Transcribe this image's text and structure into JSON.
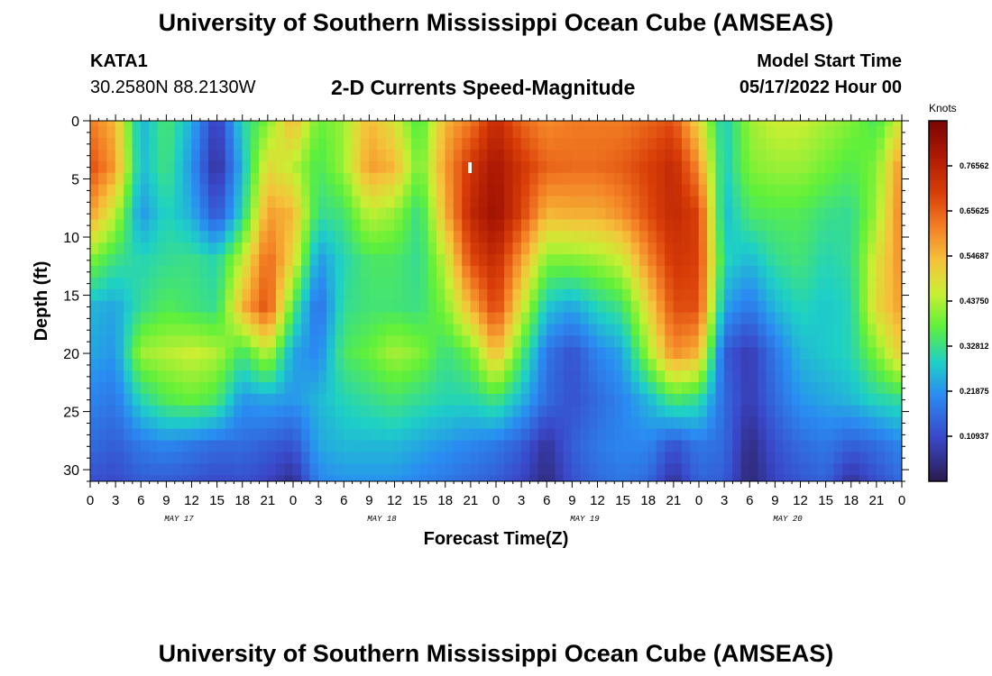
{
  "header": {
    "title": "University of Southern Mississippi Ocean Cube (AMSEAS)",
    "station": "KATA1",
    "coordinates": "30.2580N  88.2130W",
    "subtitle": "2-D Currents Speed-Magnitude",
    "model_start_label": "Model Start Time",
    "model_start_value": "05/17/2022 Hour 00"
  },
  "footer": {
    "title": "University of Southern Mississippi Ocean Cube (AMSEAS)"
  },
  "chart_data": {
    "type": "heatmap",
    "title": "2-D Currents Speed-Magnitude",
    "xlabel": "Forecast Time(Z)",
    "ylabel": "Depth (ft)",
    "x_range_hours": [
      0,
      96
    ],
    "y_range_ft": [
      0,
      31
    ],
    "x_ticks": [
      "0",
      "3",
      "6",
      "9",
      "12",
      "15",
      "18",
      "21",
      "0",
      "3",
      "6",
      "9",
      "12",
      "15",
      "18",
      "21",
      "0",
      "3",
      "6",
      "9",
      "12",
      "15",
      "18",
      "21",
      "0",
      "3",
      "6",
      "9",
      "12",
      "15",
      "18",
      "21",
      "0"
    ],
    "y_ticks": [
      "0",
      "5",
      "10",
      "15",
      "20",
      "25",
      "30"
    ],
    "day_labels": [
      "MAY 17",
      "MAY 18",
      "MAY 19",
      "MAY 20"
    ],
    "colorbar": {
      "title": "Knots",
      "range": [
        0,
        0.875
      ],
      "tick_labels": [
        "0.76562",
        "0.65625",
        "0.54687",
        "0.43750",
        "0.32812",
        "0.21875",
        "0.10937"
      ],
      "tick_values": [
        0.76562,
        0.65625,
        0.54687,
        0.4375,
        0.32812,
        0.21875,
        0.10937
      ]
    },
    "hours": [
      0,
      3,
      6,
      9,
      12,
      15,
      18,
      21,
      24,
      27,
      30,
      33,
      36,
      39,
      42,
      45,
      48,
      51,
      54,
      57,
      60,
      63,
      66,
      69,
      72,
      75,
      78,
      81,
      84,
      87,
      90,
      93,
      96
    ],
    "depths_ft": [
      0,
      4,
      8,
      12,
      16,
      20,
      24,
      28,
      31
    ],
    "values": [
      [
        0.62,
        0.55,
        0.25,
        0.35,
        0.25,
        0.08,
        0.3,
        0.4,
        0.55,
        0.38,
        0.42,
        0.55,
        0.48,
        0.35,
        0.55,
        0.62,
        0.75,
        0.65,
        0.6,
        0.62,
        0.62,
        0.62,
        0.65,
        0.68,
        0.5,
        0.28,
        0.42,
        0.46,
        0.46,
        0.43,
        0.4,
        0.35,
        0.48
      ],
      [
        0.68,
        0.58,
        0.26,
        0.34,
        0.22,
        0.05,
        0.26,
        0.5,
        0.45,
        0.35,
        0.42,
        0.58,
        0.55,
        0.38,
        0.58,
        0.72,
        0.8,
        0.72,
        0.65,
        0.64,
        0.64,
        0.66,
        0.7,
        0.75,
        0.6,
        0.28,
        0.4,
        0.42,
        0.42,
        0.39,
        0.36,
        0.4,
        0.6
      ],
      [
        0.58,
        0.45,
        0.22,
        0.3,
        0.25,
        0.12,
        0.3,
        0.58,
        0.55,
        0.32,
        0.34,
        0.45,
        0.42,
        0.32,
        0.55,
        0.75,
        0.82,
        0.7,
        0.55,
        0.56,
        0.56,
        0.6,
        0.68,
        0.75,
        0.7,
        0.26,
        0.35,
        0.36,
        0.36,
        0.33,
        0.32,
        0.42,
        0.62
      ],
      [
        0.4,
        0.33,
        0.3,
        0.32,
        0.33,
        0.3,
        0.45,
        0.65,
        0.5,
        0.22,
        0.3,
        0.35,
        0.35,
        0.32,
        0.45,
        0.68,
        0.75,
        0.58,
        0.4,
        0.4,
        0.42,
        0.46,
        0.6,
        0.72,
        0.7,
        0.3,
        0.26,
        0.32,
        0.34,
        0.3,
        0.32,
        0.48,
        0.6
      ],
      [
        0.26,
        0.24,
        0.32,
        0.36,
        0.34,
        0.32,
        0.55,
        0.68,
        0.36,
        0.16,
        0.32,
        0.34,
        0.34,
        0.33,
        0.4,
        0.55,
        0.7,
        0.48,
        0.28,
        0.24,
        0.3,
        0.34,
        0.5,
        0.68,
        0.68,
        0.24,
        0.18,
        0.26,
        0.3,
        0.28,
        0.3,
        0.5,
        0.58
      ],
      [
        0.24,
        0.22,
        0.42,
        0.44,
        0.46,
        0.44,
        0.34,
        0.45,
        0.24,
        0.2,
        0.35,
        0.38,
        0.43,
        0.4,
        0.33,
        0.38,
        0.55,
        0.36,
        0.18,
        0.12,
        0.2,
        0.24,
        0.42,
        0.6,
        0.55,
        0.14,
        0.08,
        0.18,
        0.26,
        0.28,
        0.3,
        0.4,
        0.52
      ],
      [
        0.2,
        0.18,
        0.3,
        0.36,
        0.38,
        0.35,
        0.22,
        0.24,
        0.22,
        0.26,
        0.3,
        0.32,
        0.34,
        0.32,
        0.3,
        0.3,
        0.34,
        0.26,
        0.16,
        0.12,
        0.16,
        0.2,
        0.26,
        0.35,
        0.32,
        0.16,
        0.08,
        0.16,
        0.22,
        0.24,
        0.26,
        0.3,
        0.32
      ],
      [
        0.16,
        0.14,
        0.18,
        0.2,
        0.18,
        0.16,
        0.16,
        0.14,
        0.12,
        0.24,
        0.26,
        0.26,
        0.26,
        0.24,
        0.22,
        0.2,
        0.18,
        0.14,
        0.06,
        0.14,
        0.18,
        0.2,
        0.2,
        0.12,
        0.18,
        0.16,
        0.04,
        0.12,
        0.16,
        0.18,
        0.14,
        0.16,
        0.2
      ],
      [
        0.12,
        0.11,
        0.14,
        0.14,
        0.13,
        0.11,
        0.12,
        0.1,
        0.05,
        0.2,
        0.22,
        0.22,
        0.22,
        0.2,
        0.18,
        0.16,
        0.14,
        0.1,
        0.04,
        0.12,
        0.16,
        0.18,
        0.16,
        0.06,
        0.15,
        0.14,
        0.03,
        0.1,
        0.13,
        0.15,
        0.06,
        0.12,
        0.16
      ]
    ]
  }
}
